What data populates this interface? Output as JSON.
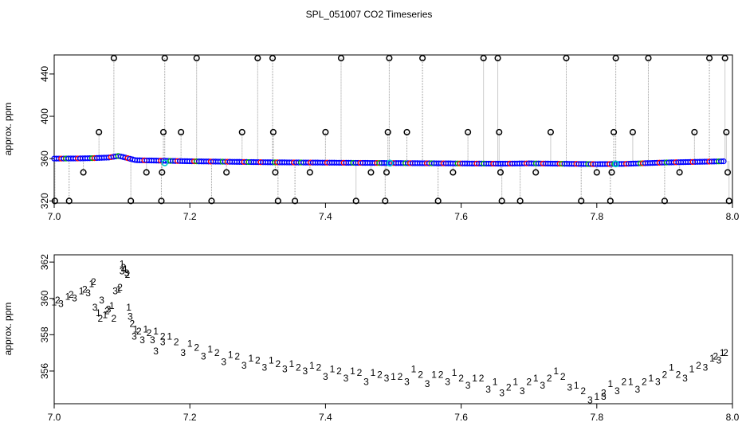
{
  "title": "SPL_051007  CO2 Timeseries",
  "colors": {
    "ch1": "#ff0000",
    "ch2": "#00b000",
    "ch3": "#0000ff",
    "cyan": "#00cccc",
    "spike": "#000000",
    "spike_line": "#999999"
  },
  "chart_data": [
    {
      "type": "scatter",
      "ylabel": "approx. ppm",
      "xlim": [
        7.0,
        8.0
      ],
      "ylim": [
        318,
        458
      ],
      "xticks": [
        "7.0",
        "7.2",
        "7.4",
        "7.6",
        "7.8",
        "8.0"
      ],
      "yticks": [
        "320",
        "360",
        "400",
        "440"
      ],
      "baseline": [
        [
          7.0,
          360
        ],
        [
          7.04,
          360.2
        ],
        [
          7.06,
          360.5
        ],
        [
          7.08,
          361
        ],
        [
          7.095,
          362.5
        ],
        [
          7.105,
          361
        ],
        [
          7.12,
          358.5
        ],
        [
          7.2,
          357.5
        ],
        [
          7.32,
          356.5
        ],
        [
          7.5,
          355.8
        ],
        [
          7.66,
          355.2
        ],
        [
          7.7,
          355.5
        ],
        [
          7.8,
          354.8
        ],
        [
          7.84,
          355
        ],
        [
          7.9,
          356.3
        ],
        [
          7.99,
          357.5
        ]
      ],
      "spikes": [
        [
          7.001,
          320
        ],
        [
          7.022,
          320
        ],
        [
          7.043,
          347
        ],
        [
          7.066,
          385
        ],
        [
          7.088,
          455
        ],
        [
          7.113,
          320
        ],
        [
          7.136,
          347
        ],
        [
          7.158,
          320
        ],
        [
          7.159,
          347
        ],
        [
          7.161,
          385
        ],
        [
          7.163,
          455
        ],
        [
          7.187,
          385
        ],
        [
          7.21,
          455
        ],
        [
          7.232,
          320
        ],
        [
          7.254,
          347
        ],
        [
          7.277,
          385
        ],
        [
          7.3,
          455
        ],
        [
          7.322,
          455
        ],
        [
          7.323,
          385
        ],
        [
          7.326,
          347
        ],
        [
          7.33,
          320
        ],
        [
          7.355,
          320
        ],
        [
          7.377,
          347
        ],
        [
          7.4,
          385
        ],
        [
          7.423,
          455
        ],
        [
          7.445,
          320
        ],
        [
          7.467,
          347
        ],
        [
          7.488,
          320
        ],
        [
          7.49,
          347
        ],
        [
          7.492,
          385
        ],
        [
          7.494,
          455
        ],
        [
          7.52,
          385
        ],
        [
          7.543,
          455
        ],
        [
          7.566,
          320
        ],
        [
          7.588,
          347
        ],
        [
          7.61,
          385
        ],
        [
          7.633,
          455
        ],
        [
          7.654,
          455
        ],
        [
          7.656,
          385
        ],
        [
          7.658,
          347
        ],
        [
          7.66,
          320
        ],
        [
          7.687,
          320
        ],
        [
          7.71,
          347
        ],
        [
          7.732,
          385
        ],
        [
          7.755,
          455
        ],
        [
          7.777,
          320
        ],
        [
          7.8,
          347
        ],
        [
          7.82,
          320
        ],
        [
          7.822,
          347
        ],
        [
          7.825,
          385
        ],
        [
          7.828,
          455
        ],
        [
          7.853,
          385
        ],
        [
          7.876,
          455
        ],
        [
          7.9,
          320
        ],
        [
          7.922,
          347
        ],
        [
          7.944,
          385
        ],
        [
          7.966,
          455
        ],
        [
          7.989,
          455
        ],
        [
          7.991,
          385
        ],
        [
          7.993,
          347
        ],
        [
          7.995,
          320
        ]
      ],
      "cyan_points": [
        [
          7.163,
          356
        ],
        [
          7.495,
          355.8
        ],
        [
          7.828,
          355
        ]
      ]
    },
    {
      "type": "scatter",
      "ylabel": "approx. ppm",
      "xlim": [
        7.0,
        8.0
      ],
      "ylim": [
        354.2,
        362.4
      ],
      "xticks": [
        "7.0",
        "7.2",
        "7.4",
        "7.6",
        "7.8",
        "8.0"
      ],
      "yticks": [
        "356",
        "358",
        "360",
        "362"
      ],
      "series": [
        {
          "name": "1",
          "label": "1",
          "points": [
            [
              7.0,
              359.8
            ],
            [
              7.02,
              360.1
            ],
            [
              7.04,
              360.4
            ],
            [
              7.055,
              360.8
            ],
            [
              7.065,
              359.2
            ],
            [
              7.075,
              359.1
            ],
            [
              7.085,
              359.6
            ],
            [
              7.095,
              360.5
            ],
            [
              7.1,
              361.9
            ],
            [
              7.105,
              361.6
            ],
            [
              7.11,
              359.5
            ],
            [
              7.12,
              358.3
            ],
            [
              7.135,
              358.3
            ],
            [
              7.15,
              358.2
            ],
            [
              7.17,
              357.9
            ],
            [
              7.2,
              357.5
            ],
            [
              7.23,
              357.2
            ],
            [
              7.26,
              356.9
            ],
            [
              7.29,
              356.7
            ],
            [
              7.32,
              356.6
            ],
            [
              7.35,
              356.4
            ],
            [
              7.38,
              356.3
            ],
            [
              7.41,
              356.1
            ],
            [
              7.44,
              356
            ],
            [
              7.47,
              355.9
            ],
            [
              7.5,
              355.7
            ],
            [
              7.53,
              356.1
            ],
            [
              7.56,
              355.8
            ],
            [
              7.59,
              355.9
            ],
            [
              7.62,
              355.6
            ],
            [
              7.65,
              355.4
            ],
            [
              7.68,
              355.4
            ],
            [
              7.71,
              355.6
            ],
            [
              7.74,
              356
            ],
            [
              7.77,
              355.2
            ],
            [
              7.8,
              354.6
            ],
            [
              7.82,
              355.3
            ],
            [
              7.85,
              355.4
            ],
            [
              7.88,
              355.6
            ],
            [
              7.91,
              356.2
            ],
            [
              7.94,
              356.1
            ],
            [
              7.97,
              356.7
            ],
            [
              7.985,
              357
            ]
          ]
        },
        {
          "name": "2",
          "label": "2",
          "points": [
            [
              7.005,
              359.9
            ],
            [
              7.025,
              360.2
            ],
            [
              7.045,
              360.5
            ],
            [
              7.058,
              360.9
            ],
            [
              7.068,
              358.9
            ],
            [
              7.078,
              359.3
            ],
            [
              7.088,
              358.9
            ],
            [
              7.097,
              360.6
            ],
            [
              7.102,
              361.7
            ],
            [
              7.108,
              361.3
            ],
            [
              7.115,
              358.6
            ],
            [
              7.125,
              358.2
            ],
            [
              7.14,
              358.1
            ],
            [
              7.16,
              357.9
            ],
            [
              7.18,
              357.6
            ],
            [
              7.21,
              357.3
            ],
            [
              7.24,
              357
            ],
            [
              7.27,
              356.8
            ],
            [
              7.3,
              356.6
            ],
            [
              7.33,
              356.4
            ],
            [
              7.36,
              356.2
            ],
            [
              7.39,
              356.2
            ],
            [
              7.42,
              356
            ],
            [
              7.45,
              355.9
            ],
            [
              7.48,
              355.8
            ],
            [
              7.51,
              355.7
            ],
            [
              7.54,
              355.8
            ],
            [
              7.57,
              355.8
            ],
            [
              7.6,
              355.6
            ],
            [
              7.63,
              355.6
            ],
            [
              7.67,
              355.1
            ],
            [
              7.7,
              355.4
            ],
            [
              7.73,
              355.6
            ],
            [
              7.75,
              355.7
            ],
            [
              7.78,
              354.9
            ],
            [
              7.81,
              354.8
            ],
            [
              7.84,
              355.4
            ],
            [
              7.87,
              355.4
            ],
            [
              7.9,
              355.8
            ],
            [
              7.92,
              355.8
            ],
            [
              7.95,
              356.3
            ],
            [
              7.975,
              356.8
            ],
            [
              7.99,
              357
            ]
          ]
        },
        {
          "name": "3",
          "label": "3",
          "points": [
            [
              7.01,
              359.7
            ],
            [
              7.03,
              360
            ],
            [
              7.05,
              360.3
            ],
            [
              7.06,
              359.5
            ],
            [
              7.07,
              359.9
            ],
            [
              7.08,
              359.4
            ],
            [
              7.09,
              360.4
            ],
            [
              7.1,
              361.5
            ],
            [
              7.107,
              361.4
            ],
            [
              7.112,
              359
            ],
            [
              7.118,
              357.9
            ],
            [
              7.13,
              357.7
            ],
            [
              7.145,
              357.7
            ],
            [
              7.16,
              357.6
            ],
            [
              7.15,
              357.1
            ],
            [
              7.19,
              357
            ],
            [
              7.22,
              356.8
            ],
            [
              7.25,
              356.5
            ],
            [
              7.28,
              356.3
            ],
            [
              7.31,
              356.2
            ],
            [
              7.34,
              356.1
            ],
            [
              7.37,
              356
            ],
            [
              7.4,
              355.7
            ],
            [
              7.43,
              355.6
            ],
            [
              7.46,
              355.4
            ],
            [
              7.49,
              355.6
            ],
            [
              7.52,
              355.4
            ],
            [
              7.55,
              355.3
            ],
            [
              7.58,
              355.4
            ],
            [
              7.61,
              355.2
            ],
            [
              7.64,
              355
            ],
            [
              7.66,
              354.8
            ],
            [
              7.69,
              354.9
            ],
            [
              7.72,
              355.2
            ],
            [
              7.76,
              355.1
            ],
            [
              7.79,
              354.4
            ],
            [
              7.81,
              354.6
            ],
            [
              7.83,
              354.9
            ],
            [
              7.86,
              355
            ],
            [
              7.89,
              355.4
            ],
            [
              7.93,
              355.6
            ],
            [
              7.96,
              356.2
            ],
            [
              7.98,
              356.6
            ]
          ]
        }
      ]
    }
  ]
}
